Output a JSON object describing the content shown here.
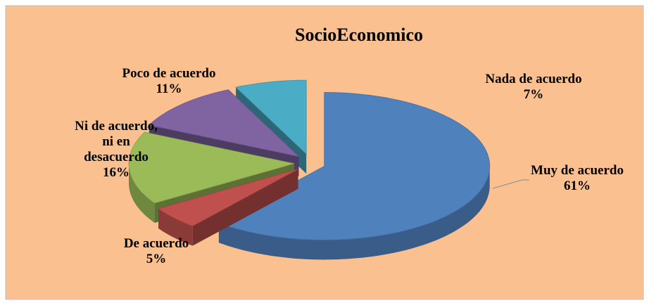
{
  "chart_data": {
    "type": "pie3d",
    "title": "SocioEconomico",
    "categories": [
      "Muy de acuerdo",
      "De acuerdo",
      "Ni de acuerdo, ni en desacuerdo",
      "Poco de acuerdo",
      "Nada de acuerdo"
    ],
    "values": [
      61,
      5,
      16,
      11,
      7
    ],
    "value_labels": [
      "61%",
      "5%",
      "16%",
      "11%",
      "7%"
    ],
    "colors": [
      "#4f81bd",
      "#c0504d",
      "#9bbb59",
      "#8064a2",
      "#4bacc6"
    ]
  }
}
